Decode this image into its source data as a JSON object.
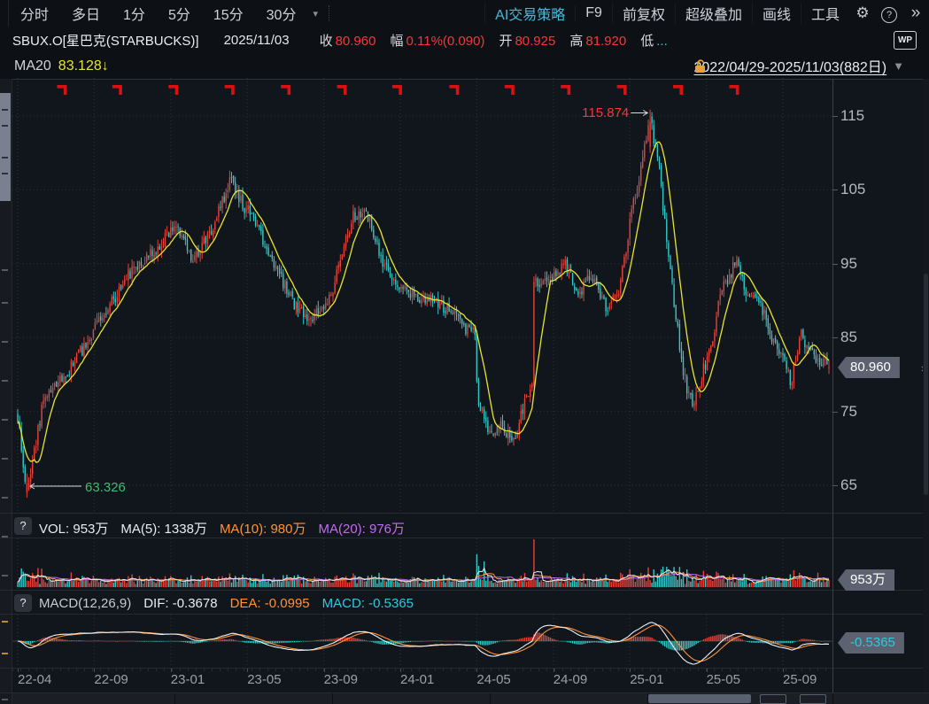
{
  "toolbar": {
    "items_left": [
      "分时",
      "多日",
      "1分",
      "5分",
      "15分",
      "30分"
    ],
    "dropdown_caret": "▾",
    "items_right": [
      {
        "t": "AI交易策略",
        "c": "cyan-t"
      },
      {
        "t": "F9",
        "c": ""
      },
      {
        "t": "前复权",
        "c": ""
      },
      {
        "t": "超级叠加",
        "c": ""
      },
      {
        "t": "画线",
        "c": ""
      },
      {
        "t": "工具",
        "c": ""
      }
    ],
    "gear_icon": "⚙",
    "help_icon": "?",
    "expand_icon": "»"
  },
  "info_bar": {
    "symbol": "SBUX.O[星巴克(STARBUCKS)]",
    "date": "2025/11/03",
    "fields": [
      {
        "label": "收",
        "value": "80.960",
        "vc": "c-red"
      },
      {
        "label": "幅",
        "value": "0.11%(0.090)",
        "vc": "c-red"
      },
      {
        "label": "开",
        "value": "80.925",
        "vc": "c-red"
      },
      {
        "label": "高",
        "value": "81.920",
        "vc": "c-red"
      },
      {
        "label": "低",
        "value": "...",
        "vc": "c-cyan"
      }
    ],
    "wp_icon": "WP"
  },
  "indicator_bar": {
    "ma_label": "MA20",
    "ma_value": "83.128↓",
    "range": "2022/04/29-2025/11/03(882日)",
    "range_caret": "▼"
  },
  "volume_panel": {
    "help": "?",
    "parts": [
      {
        "t": "VOL: 953万",
        "c": "c-white"
      },
      {
        "t": "MA(5): 1338万",
        "c": "c-white"
      },
      {
        "t": "MA(10): 980万",
        "c": "c-orange"
      },
      {
        "t": "MA(20): 976万",
        "c": "c-purple"
      }
    ],
    "badge": "953万"
  },
  "macd_panel": {
    "help": "?",
    "parts": [
      {
        "t": "MACD(12,26,9)",
        "c": "c-gray"
      },
      {
        "t": "DIF: -0.3678",
        "c": "c-white"
      },
      {
        "t": "DEA: -0.0995",
        "c": "c-orange"
      },
      {
        "t": "MACD: -0.5365",
        "c": "c-cyan"
      }
    ],
    "badge": "-0.5365"
  },
  "price_badge": "80.960",
  "chart_data": {
    "type": "candlestick",
    "symbol": "SBUX.O",
    "period_days": 882,
    "date_range": "2022/04/29 - 2025/11/03",
    "last_close": 80.96,
    "y_axis_ticks": [
      115,
      105,
      95,
      85,
      75,
      65
    ],
    "x_axis_labels": [
      "22-04",
      "22-09",
      "23-01",
      "23-05",
      "23-09",
      "24-01",
      "24-05",
      "24-09",
      "25-01",
      "25-05",
      "25-09"
    ],
    "price_keypoints": [
      [
        0,
        74.5
      ],
      [
        10,
        63.8
      ],
      [
        28,
        76.5
      ],
      [
        55,
        80.5
      ],
      [
        78,
        85.0
      ],
      [
        96,
        88.5
      ],
      [
        125,
        94.5
      ],
      [
        150,
        97.0
      ],
      [
        173,
        100.5
      ],
      [
        190,
        95.3
      ],
      [
        211,
        100.0
      ],
      [
        232,
        106.5
      ],
      [
        238,
        104.0
      ],
      [
        254,
        101.3
      ],
      [
        278,
        94.7
      ],
      [
        302,
        89.3
      ],
      [
        321,
        87.5
      ],
      [
        340,
        91.0
      ],
      [
        364,
        101.3
      ],
      [
        379,
        101.9
      ],
      [
        393,
        96.0
      ],
      [
        412,
        92.3
      ],
      [
        431,
        90.5
      ],
      [
        451,
        90.0
      ],
      [
        470,
        88.7
      ],
      [
        484,
        86.3
      ],
      [
        496,
        85.5
      ],
      [
        499,
        76.5
      ],
      [
        513,
        71.6
      ],
      [
        527,
        73.2
      ],
      [
        537,
        70.5
      ],
      [
        547,
        75.0
      ],
      [
        556,
        78.0
      ],
      [
        558,
        78.2
      ],
      [
        560,
        93.0
      ],
      [
        575,
        92.3
      ],
      [
        594,
        95.0
      ],
      [
        609,
        91.1
      ],
      [
        623,
        93.5
      ],
      [
        638,
        89.3
      ],
      [
        652,
        91.1
      ],
      [
        666,
        101.9
      ],
      [
        676,
        107.9
      ],
      [
        686,
        114.3
      ],
      [
        695,
        109.1
      ],
      [
        705,
        97.1
      ],
      [
        714,
        87.5
      ],
      [
        724,
        79.1
      ],
      [
        733,
        75.2
      ],
      [
        743,
        80.3
      ],
      [
        753,
        83.9
      ],
      [
        762,
        91.1
      ],
      [
        772,
        93.5
      ],
      [
        781,
        95.3
      ],
      [
        791,
        91.1
      ],
      [
        800,
        89.9
      ],
      [
        810,
        88.1
      ],
      [
        820,
        84.5
      ],
      [
        829,
        82.7
      ],
      [
        839,
        78.8
      ],
      [
        849,
        86.0
      ],
      [
        858,
        83.3
      ],
      [
        868,
        82.1
      ],
      [
        881,
        80.96
      ]
    ],
    "high_annotation": {
      "label": "115.874",
      "day": 686,
      "value": 115.874
    },
    "low_annotation": {
      "label": "63.326",
      "day": 10,
      "value": 63.326
    },
    "event_marker_days": [
      -11,
      50,
      110,
      171,
      232,
      293,
      354,
      414,
      476,
      536,
      597,
      658,
      719,
      780
    ],
    "volume_spikes": [
      {
        "day": 505,
        "v": 3400
      },
      {
        "day": 560,
        "v": 6300
      },
      {
        "day": 684,
        "v": 2600
      },
      {
        "day": 706,
        "v": 2200
      },
      {
        "day": 868,
        "v": 1900
      }
    ],
    "volume_current": 953,
    "macd_params": [
      12,
      26,
      9
    ],
    "colors": {
      "up": "#e2443c",
      "down": "#36c6c6",
      "ma20": "#e8e431",
      "vol_ma5": "#e8ebf0",
      "vol_ma10": "#ff9334",
      "vol_ma20": "#c26bf0",
      "dif": "#eef0f4",
      "dea": "#ff9334",
      "event_marker": "#dc1010",
      "high_label": "#f4383a",
      "low_label": "#3cbd72",
      "badge_bg": "#5d6270"
    }
  }
}
